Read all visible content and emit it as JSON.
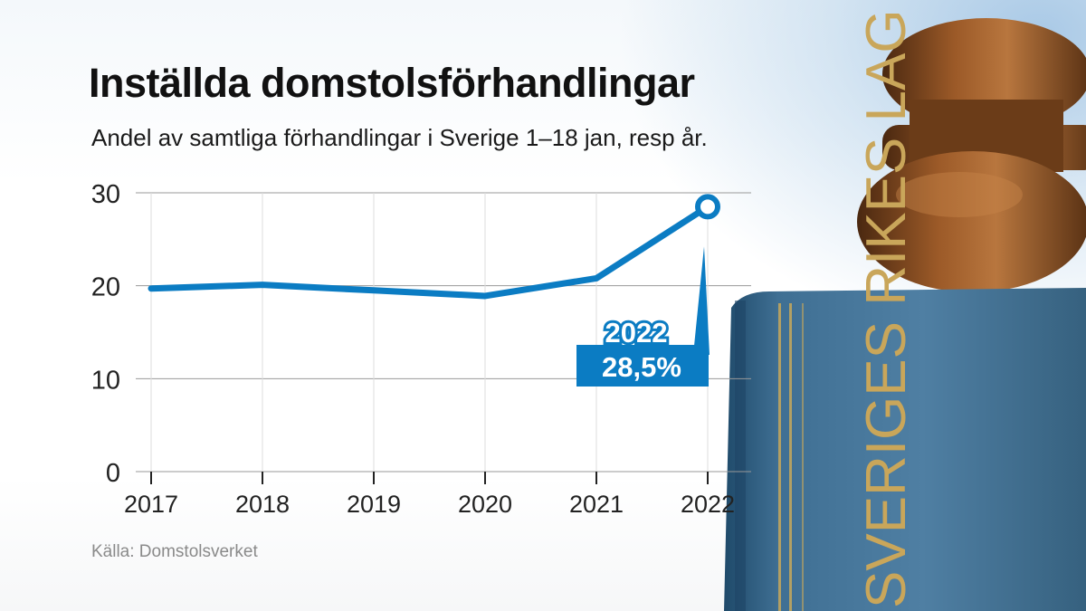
{
  "title": "Inställda domstolsförhandlingar",
  "subtitle": "Andel av samtliga förhandlingar i Sverige 1–18 jan, resp år.",
  "source": "Källa: Domstolsverket",
  "book_spine_text": "SVERIGES RIKES LAG",
  "colors": {
    "line": "#0b7cc3",
    "label_bg": "#0b7cc3",
    "grid": "#999999"
  },
  "chart_data": {
    "type": "line",
    "x": [
      "2017",
      "2018",
      "2019",
      "2020",
      "2021",
      "2022"
    ],
    "series": [
      {
        "values": [
          19.7,
          20.1,
          19.5,
          18.9,
          20.8,
          28.5
        ]
      }
    ],
    "yticks": [
      "0",
      "10",
      "20",
      "30"
    ],
    "ylim": [
      0,
      30
    ],
    "xlabel": "",
    "ylabel": "",
    "grid": true,
    "highlight": {
      "year_label": "2022",
      "value_label": "28,5%"
    }
  }
}
